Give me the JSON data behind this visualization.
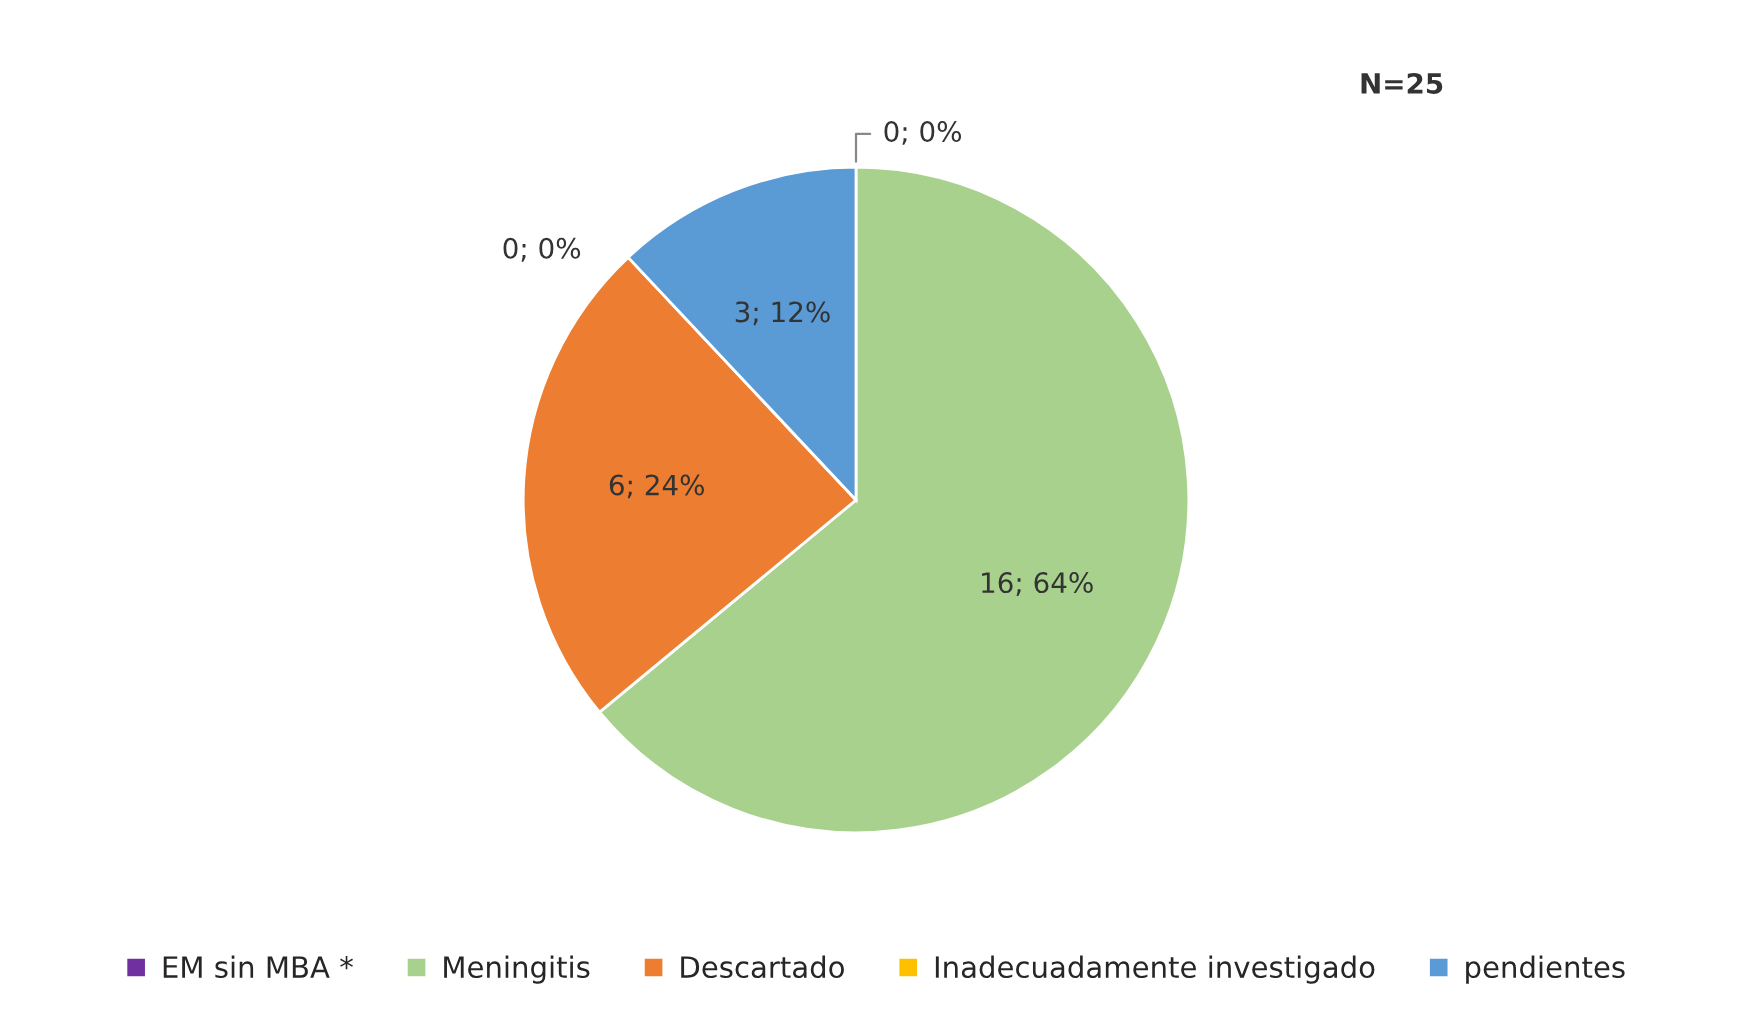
{
  "chart_data": {
    "type": "pie",
    "categories": [
      "EM sin MBA *",
      "Meningitis",
      "Descartado",
      "Inadecuadamente investigado",
      "pendientes"
    ],
    "values": [
      0,
      16,
      6,
      0,
      3
    ],
    "value_labels": [
      "0; 0%",
      "16; 64%",
      "6; 24%",
      "0; 0%",
      "3; 12%"
    ],
    "colors": [
      "#7030a0",
      "#a9d18e",
      "#ed7d31",
      "#ffc000",
      "#5b9bd5"
    ],
    "annotations": [
      "N=25"
    ],
    "legend": "bottom"
  }
}
